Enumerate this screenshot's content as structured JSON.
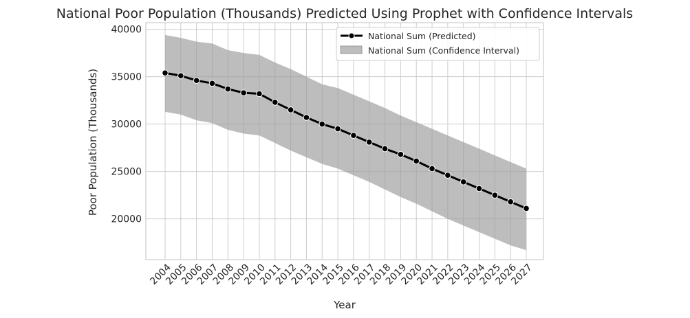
{
  "chart_data": {
    "type": "line",
    "title": "National Poor Population (Thousands) Predicted Using Prophet with Confidence Intervals",
    "xlabel": "Year",
    "ylabel": "Poor Population (Thousands)",
    "x": [
      "2004",
      "2005",
      "2006",
      "2007",
      "2008",
      "2009",
      "2010",
      "2011",
      "2012",
      "2013",
      "2014",
      "2015",
      "2016",
      "2017",
      "2018",
      "2019",
      "2020",
      "2021",
      "2022",
      "2023",
      "2024",
      "2025",
      "2026",
      "2027"
    ],
    "ylim": [
      15700,
      40700
    ],
    "yticks": [
      20000,
      25000,
      30000,
      35000,
      40000
    ],
    "grid": true,
    "legend_position": "top-right",
    "series": [
      {
        "name": "National Sum (Predicted)",
        "color": "#000000",
        "values": [
          35400,
          35100,
          34600,
          34300,
          33700,
          33300,
          33200,
          32300,
          31500,
          30700,
          30000,
          29500,
          28800,
          28100,
          27400,
          26800,
          26100,
          25300,
          24600,
          23900,
          23200,
          22500,
          21800,
          21100
        ]
      },
      {
        "name": "National Sum (Confidence Interval)",
        "color": "#999999",
        "lower": [
          31300,
          31000,
          30400,
          30100,
          29400,
          29000,
          28800,
          28000,
          27200,
          26500,
          25800,
          25300,
          24600,
          23900,
          23100,
          22300,
          21600,
          20800,
          20000,
          19300,
          18600,
          17900,
          17200,
          16700
        ],
        "upper": [
          39400,
          39100,
          38700,
          38500,
          37800,
          37500,
          37300,
          36500,
          35800,
          35000,
          34200,
          33800,
          33100,
          32400,
          31700,
          30900,
          30200,
          29500,
          28800,
          28100,
          27400,
          26700,
          26000,
          25300
        ]
      }
    ]
  }
}
